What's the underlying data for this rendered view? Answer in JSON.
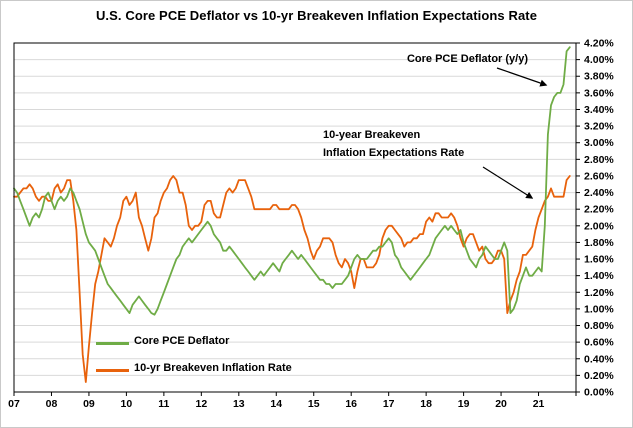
{
  "title": "U.S. Core PCE Deflator vs 10-yr Breakeven Inflation Expectations Rate",
  "annotations": {
    "pce": "Core PCE Deflator (y/y)",
    "breakeven_line1": "10-year Breakeven",
    "breakeven_line2": "Inflation Expectations Rate"
  },
  "legend": {
    "pce": "Core PCE Deflator",
    "breakeven": "10-yr Breakeven Inflation Rate"
  },
  "colors": {
    "pce": "#6FAC46",
    "breakeven": "#E8620C",
    "grid": "#D9D9D9",
    "axis": "#000000",
    "background": "#FFFFFF"
  },
  "chart_data": {
    "type": "line",
    "title": "U.S. Core PCE Deflator vs 10-yr Breakeven Inflation Expectations Rate",
    "xlabel": "",
    "ylabel": "",
    "x_start_year": 2007,
    "x_axis_end_year": 2022,
    "frequency": "monthly",
    "ylim": [
      0,
      4.2
    ],
    "y_tick_step": 0.2,
    "y_axis_side": "right",
    "grid": "horizontal",
    "legend_position": "inside-lower-left",
    "y_tick_labels": [
      "0.00%",
      "0.20%",
      "0.40%",
      "0.60%",
      "0.80%",
      "1.00%",
      "1.20%",
      "1.40%",
      "1.60%",
      "1.80%",
      "2.00%",
      "2.20%",
      "2.40%",
      "2.60%",
      "2.80%",
      "3.00%",
      "3.20%",
      "3.40%",
      "3.60%",
      "3.80%",
      "4.00%",
      "4.20%"
    ],
    "x_tick_labels": [
      "07",
      "08",
      "09",
      "10",
      "11",
      "12",
      "13",
      "14",
      "15",
      "16",
      "17",
      "18",
      "19",
      "20",
      "21"
    ],
    "series": [
      {
        "name": "Core PCE Deflator",
        "color": "#6FAC46",
        "values": [
          2.45,
          2.4,
          2.3,
          2.2,
          2.1,
          2.0,
          2.1,
          2.15,
          2.1,
          2.2,
          2.35,
          2.4,
          2.3,
          2.2,
          2.3,
          2.35,
          2.3,
          2.35,
          2.45,
          2.4,
          2.3,
          2.2,
          2.05,
          1.9,
          1.8,
          1.75,
          1.7,
          1.6,
          1.5,
          1.4,
          1.3,
          1.25,
          1.2,
          1.15,
          1.1,
          1.05,
          1.0,
          0.95,
          1.05,
          1.1,
          1.15,
          1.1,
          1.05,
          1.0,
          0.95,
          0.93,
          1.0,
          1.1,
          1.2,
          1.3,
          1.4,
          1.5,
          1.6,
          1.65,
          1.75,
          1.8,
          1.85,
          1.8,
          1.85,
          1.9,
          1.95,
          2.0,
          2.05,
          2.0,
          1.9,
          1.85,
          1.8,
          1.7,
          1.7,
          1.75,
          1.7,
          1.65,
          1.6,
          1.55,
          1.5,
          1.45,
          1.4,
          1.35,
          1.4,
          1.45,
          1.4,
          1.45,
          1.5,
          1.55,
          1.5,
          1.45,
          1.55,
          1.6,
          1.65,
          1.7,
          1.65,
          1.6,
          1.65,
          1.6,
          1.55,
          1.5,
          1.45,
          1.4,
          1.35,
          1.35,
          1.3,
          1.3,
          1.25,
          1.3,
          1.3,
          1.3,
          1.35,
          1.4,
          1.5,
          1.6,
          1.65,
          1.6,
          1.6,
          1.6,
          1.65,
          1.7,
          1.7,
          1.75,
          1.75,
          1.8,
          1.85,
          1.8,
          1.65,
          1.6,
          1.5,
          1.45,
          1.4,
          1.35,
          1.4,
          1.45,
          1.5,
          1.55,
          1.6,
          1.65,
          1.75,
          1.85,
          1.9,
          1.95,
          2.0,
          1.95,
          2.0,
          1.95,
          1.9,
          1.95,
          1.8,
          1.7,
          1.6,
          1.55,
          1.5,
          1.6,
          1.65,
          1.75,
          1.7,
          1.65,
          1.6,
          1.6,
          1.7,
          1.8,
          1.7,
          0.95,
          1.0,
          1.1,
          1.3,
          1.4,
          1.5,
          1.4,
          1.4,
          1.45,
          1.5,
          1.45,
          2.0,
          3.1,
          3.45,
          3.55,
          3.6,
          3.6,
          3.7,
          4.1,
          4.15
        ]
      },
      {
        "name": "10-yr Breakeven Inflation Rate",
        "color": "#E8620C",
        "values": [
          2.35,
          2.35,
          2.4,
          2.45,
          2.45,
          2.5,
          2.45,
          2.35,
          2.3,
          2.35,
          2.35,
          2.3,
          2.3,
          2.45,
          2.5,
          2.4,
          2.45,
          2.55,
          2.55,
          2.3,
          1.95,
          1.2,
          0.45,
          0.12,
          0.55,
          0.95,
          1.3,
          1.45,
          1.65,
          1.85,
          1.8,
          1.75,
          1.85,
          2.0,
          2.1,
          2.3,
          2.35,
          2.25,
          2.3,
          2.4,
          2.1,
          2.0,
          1.85,
          1.7,
          1.85,
          2.1,
          2.15,
          2.3,
          2.4,
          2.45,
          2.55,
          2.6,
          2.55,
          2.4,
          2.4,
          2.25,
          2.0,
          1.95,
          2.0,
          2.0,
          2.05,
          2.25,
          2.3,
          2.3,
          2.15,
          2.1,
          2.1,
          2.25,
          2.4,
          2.45,
          2.4,
          2.45,
          2.55,
          2.55,
          2.55,
          2.45,
          2.35,
          2.2,
          2.2,
          2.2,
          2.2,
          2.2,
          2.2,
          2.25,
          2.25,
          2.2,
          2.2,
          2.2,
          2.2,
          2.25,
          2.25,
          2.2,
          2.1,
          1.95,
          1.85,
          1.7,
          1.6,
          1.7,
          1.75,
          1.85,
          1.85,
          1.85,
          1.8,
          1.65,
          1.55,
          1.5,
          1.6,
          1.55,
          1.45,
          1.25,
          1.45,
          1.6,
          1.6,
          1.5,
          1.5,
          1.5,
          1.55,
          1.65,
          1.85,
          1.95,
          2.0,
          2.0,
          1.95,
          1.9,
          1.85,
          1.75,
          1.8,
          1.8,
          1.85,
          1.85,
          1.9,
          1.9,
          2.05,
          2.1,
          2.05,
          2.15,
          2.15,
          2.1,
          2.1,
          2.1,
          2.15,
          2.1,
          2.0,
          1.85,
          1.75,
          1.85,
          1.9,
          1.9,
          1.8,
          1.7,
          1.75,
          1.6,
          1.55,
          1.55,
          1.6,
          1.7,
          1.7,
          1.6,
          0.95,
          1.1,
          1.2,
          1.35,
          1.45,
          1.65,
          1.65,
          1.7,
          1.75,
          1.95,
          2.1,
          2.2,
          2.3,
          2.35,
          2.45,
          2.35,
          2.35,
          2.35,
          2.35,
          2.55,
          2.6
        ]
      }
    ]
  }
}
